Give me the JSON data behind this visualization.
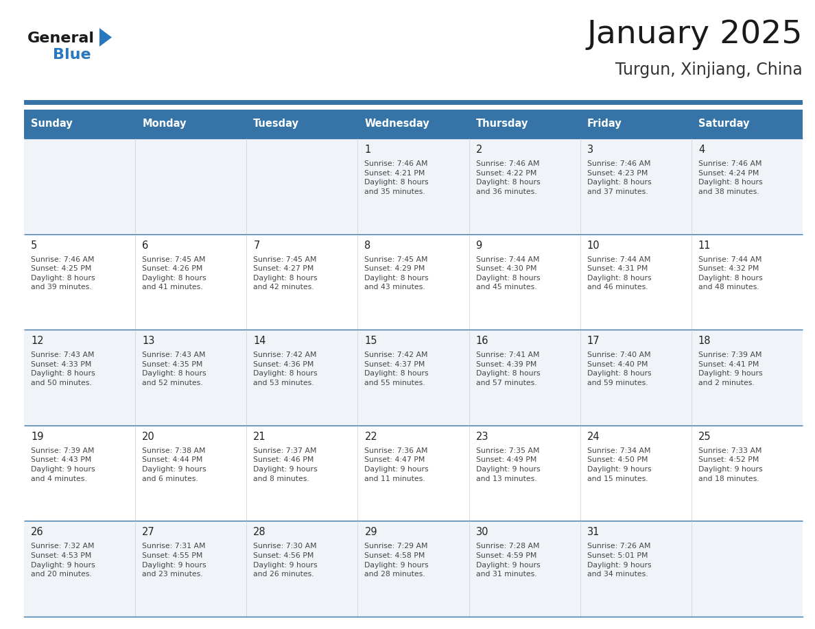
{
  "title": "January 2025",
  "subtitle": "Turgun, Xinjiang, China",
  "days_of_week": [
    "Sunday",
    "Monday",
    "Tuesday",
    "Wednesday",
    "Thursday",
    "Friday",
    "Saturday"
  ],
  "header_bg": "#3674a8",
  "header_text": "#FFFFFF",
  "row_bg_light": "#f0f4f8",
  "row_bg_white": "#FFFFFF",
  "cell_text_color": "#444444",
  "day_num_color": "#222222",
  "divider_color": "#3674a8",
  "title_color": "#1a1a1a",
  "subtitle_color": "#333333",
  "logo_general_color": "#1a1a1a",
  "logo_blue_color": "#2878c0",
  "calendar_data": [
    [
      {
        "day": null
      },
      {
        "day": null
      },
      {
        "day": null
      },
      {
        "day": 1,
        "sunrise": "7:46 AM",
        "sunset": "4:21 PM",
        "daylight_h": "8",
        "daylight_m": "35"
      },
      {
        "day": 2,
        "sunrise": "7:46 AM",
        "sunset": "4:22 PM",
        "daylight_h": "8",
        "daylight_m": "36"
      },
      {
        "day": 3,
        "sunrise": "7:46 AM",
        "sunset": "4:23 PM",
        "daylight_h": "8",
        "daylight_m": "37"
      },
      {
        "day": 4,
        "sunrise": "7:46 AM",
        "sunset": "4:24 PM",
        "daylight_h": "8",
        "daylight_m": "38"
      }
    ],
    [
      {
        "day": 5,
        "sunrise": "7:46 AM",
        "sunset": "4:25 PM",
        "daylight_h": "8",
        "daylight_m": "39"
      },
      {
        "day": 6,
        "sunrise": "7:45 AM",
        "sunset": "4:26 PM",
        "daylight_h": "8",
        "daylight_m": "41"
      },
      {
        "day": 7,
        "sunrise": "7:45 AM",
        "sunset": "4:27 PM",
        "daylight_h": "8",
        "daylight_m": "42"
      },
      {
        "day": 8,
        "sunrise": "7:45 AM",
        "sunset": "4:29 PM",
        "daylight_h": "8",
        "daylight_m": "43"
      },
      {
        "day": 9,
        "sunrise": "7:44 AM",
        "sunset": "4:30 PM",
        "daylight_h": "8",
        "daylight_m": "45"
      },
      {
        "day": 10,
        "sunrise": "7:44 AM",
        "sunset": "4:31 PM",
        "daylight_h": "8",
        "daylight_m": "46"
      },
      {
        "day": 11,
        "sunrise": "7:44 AM",
        "sunset": "4:32 PM",
        "daylight_h": "8",
        "daylight_m": "48"
      }
    ],
    [
      {
        "day": 12,
        "sunrise": "7:43 AM",
        "sunset": "4:33 PM",
        "daylight_h": "8",
        "daylight_m": "50"
      },
      {
        "day": 13,
        "sunrise": "7:43 AM",
        "sunset": "4:35 PM",
        "daylight_h": "8",
        "daylight_m": "52"
      },
      {
        "day": 14,
        "sunrise": "7:42 AM",
        "sunset": "4:36 PM",
        "daylight_h": "8",
        "daylight_m": "53"
      },
      {
        "day": 15,
        "sunrise": "7:42 AM",
        "sunset": "4:37 PM",
        "daylight_h": "8",
        "daylight_m": "55"
      },
      {
        "day": 16,
        "sunrise": "7:41 AM",
        "sunset": "4:39 PM",
        "daylight_h": "8",
        "daylight_m": "57"
      },
      {
        "day": 17,
        "sunrise": "7:40 AM",
        "sunset": "4:40 PM",
        "daylight_h": "8",
        "daylight_m": "59"
      },
      {
        "day": 18,
        "sunrise": "7:39 AM",
        "sunset": "4:41 PM",
        "daylight_h": "9",
        "daylight_m": "2"
      }
    ],
    [
      {
        "day": 19,
        "sunrise": "7:39 AM",
        "sunset": "4:43 PM",
        "daylight_h": "9",
        "daylight_m": "4"
      },
      {
        "day": 20,
        "sunrise": "7:38 AM",
        "sunset": "4:44 PM",
        "daylight_h": "9",
        "daylight_m": "6"
      },
      {
        "day": 21,
        "sunrise": "7:37 AM",
        "sunset": "4:46 PM",
        "daylight_h": "9",
        "daylight_m": "8"
      },
      {
        "day": 22,
        "sunrise": "7:36 AM",
        "sunset": "4:47 PM",
        "daylight_h": "9",
        "daylight_m": "11"
      },
      {
        "day": 23,
        "sunrise": "7:35 AM",
        "sunset": "4:49 PM",
        "daylight_h": "9",
        "daylight_m": "13"
      },
      {
        "day": 24,
        "sunrise": "7:34 AM",
        "sunset": "4:50 PM",
        "daylight_h": "9",
        "daylight_m": "15"
      },
      {
        "day": 25,
        "sunrise": "7:33 AM",
        "sunset": "4:52 PM",
        "daylight_h": "9",
        "daylight_m": "18"
      }
    ],
    [
      {
        "day": 26,
        "sunrise": "7:32 AM",
        "sunset": "4:53 PM",
        "daylight_h": "9",
        "daylight_m": "20"
      },
      {
        "day": 27,
        "sunrise": "7:31 AM",
        "sunset": "4:55 PM",
        "daylight_h": "9",
        "daylight_m": "23"
      },
      {
        "day": 28,
        "sunrise": "7:30 AM",
        "sunset": "4:56 PM",
        "daylight_h": "9",
        "daylight_m": "26"
      },
      {
        "day": 29,
        "sunrise": "7:29 AM",
        "sunset": "4:58 PM",
        "daylight_h": "9",
        "daylight_m": "28"
      },
      {
        "day": 30,
        "sunrise": "7:28 AM",
        "sunset": "4:59 PM",
        "daylight_h": "9",
        "daylight_m": "31"
      },
      {
        "day": 31,
        "sunrise": "7:26 AM",
        "sunset": "5:01 PM",
        "daylight_h": "9",
        "daylight_m": "34"
      },
      {
        "day": null
      }
    ]
  ]
}
